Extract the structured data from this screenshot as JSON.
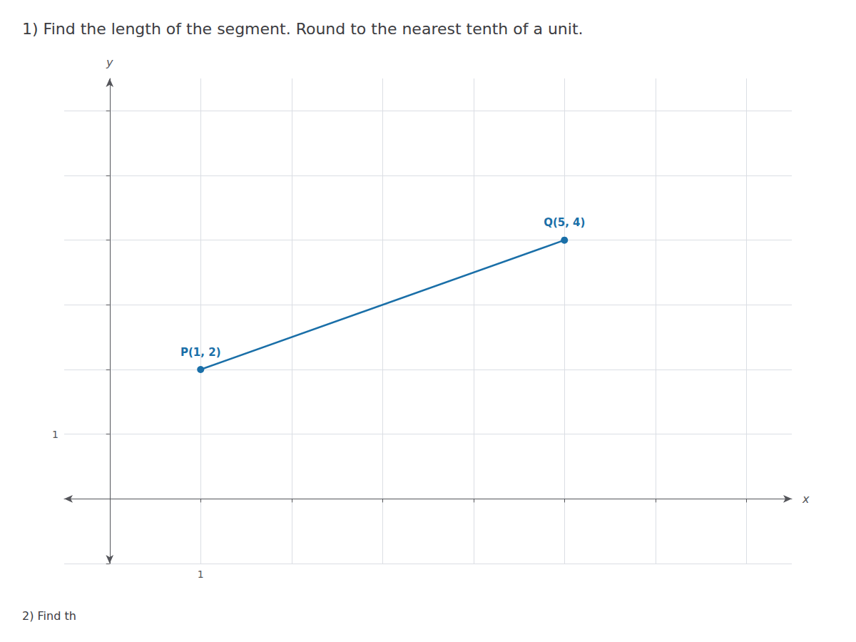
{
  "chart_data": {
    "type": "line",
    "title": "1) Find the length of the segment. Round to the nearest tenth of a unit.",
    "subtitle": "2) Find th",
    "x_label": "x",
    "y_label": "y",
    "x": [
      1,
      5
    ],
    "values": [
      2,
      4
    ],
    "point_labels": [
      "P(1, 2)",
      "Q(5, 4)"
    ],
    "color": "#1a6fa8",
    "marker": "circle",
    "xlim": [
      -0.5,
      7.5
    ],
    "ylim": [
      -1.0,
      6.5
    ],
    "xticks": [
      1
    ],
    "yticks": [
      1
    ],
    "grid": true
  }
}
